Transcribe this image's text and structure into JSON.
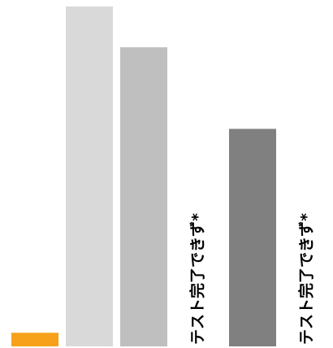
{
  "chart_data": {
    "type": "bar",
    "title": "",
    "xlabel": "",
    "ylabel": "",
    "categories": [
      "",
      "",
      "",
      "",
      "",
      ""
    ],
    "series": [
      {
        "values": [
          4,
          100,
          88,
          0,
          64,
          0
        ],
        "colors": [
          "#f7a11a",
          "#d9d9d9",
          "#bfbfbf",
          "#ffffff",
          "#808080",
          "#ffffff"
        ]
      }
    ],
    "annotations": [
      {
        "category_index": 3,
        "text": "テスト完了できず*"
      },
      {
        "category_index": 5,
        "text": "テスト完了できず*"
      }
    ],
    "ylim": [
      0,
      100
    ],
    "grid": false,
    "legend": "none"
  }
}
